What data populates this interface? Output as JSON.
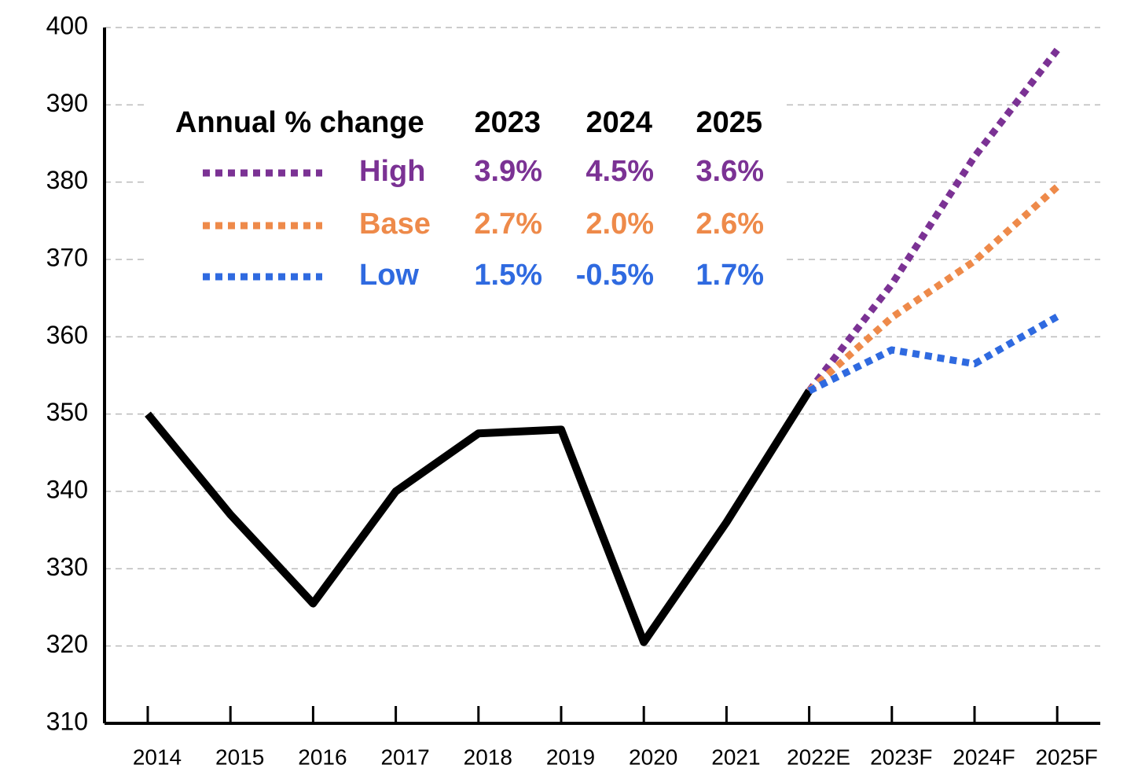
{
  "chart_data": {
    "type": "line",
    "categories": [
      "2014",
      "2015",
      "2016",
      "2017",
      "2018",
      "2019",
      "2020",
      "2021",
      "2022E",
      "2023F",
      "2024F",
      "2025F"
    ],
    "ylim": [
      310,
      400
    ],
    "yticks": [
      310,
      320,
      330,
      340,
      350,
      360,
      370,
      380,
      390,
      400
    ],
    "grid": true,
    "series": [
      {
        "color": "#000000",
        "style": "solid",
        "values": [
          350,
          337,
          325.5,
          340,
          347.5,
          348,
          320.5,
          336,
          353,
          null,
          null,
          null
        ]
      },
      {
        "name": "High",
        "color": "#7b3294",
        "style": "dotted",
        "values": [
          null,
          null,
          null,
          null,
          null,
          null,
          null,
          null,
          353,
          366.8,
          383.3,
          397.1
        ],
        "changes": [
          3.9,
          4.5,
          3.6
        ],
        "change_labels": [
          "3.9%",
          "4.5%",
          "3.6%"
        ]
      },
      {
        "name": "Base",
        "color": "#ee8a4a",
        "style": "dotted",
        "values": [
          null,
          null,
          null,
          null,
          null,
          null,
          null,
          null,
          353,
          362.5,
          369.8,
          379.4
        ],
        "changes": [
          2.7,
          2.0,
          2.6
        ],
        "change_labels": [
          "2.7%",
          "2.0%",
          "2.6%"
        ]
      },
      {
        "name": "Low",
        "color": "#2f6ae0",
        "style": "dotted",
        "values": [
          null,
          null,
          null,
          null,
          null,
          null,
          null,
          null,
          353,
          358.3,
          356.5,
          362.6
        ],
        "changes": [
          1.5,
          -0.5,
          1.7
        ],
        "change_labels": [
          "1.5%",
          "-0.5%",
          "1.7%"
        ]
      }
    ],
    "legend_table": {
      "title": "Annual % change",
      "columns": [
        "2023",
        "2024",
        "2025"
      ]
    }
  }
}
